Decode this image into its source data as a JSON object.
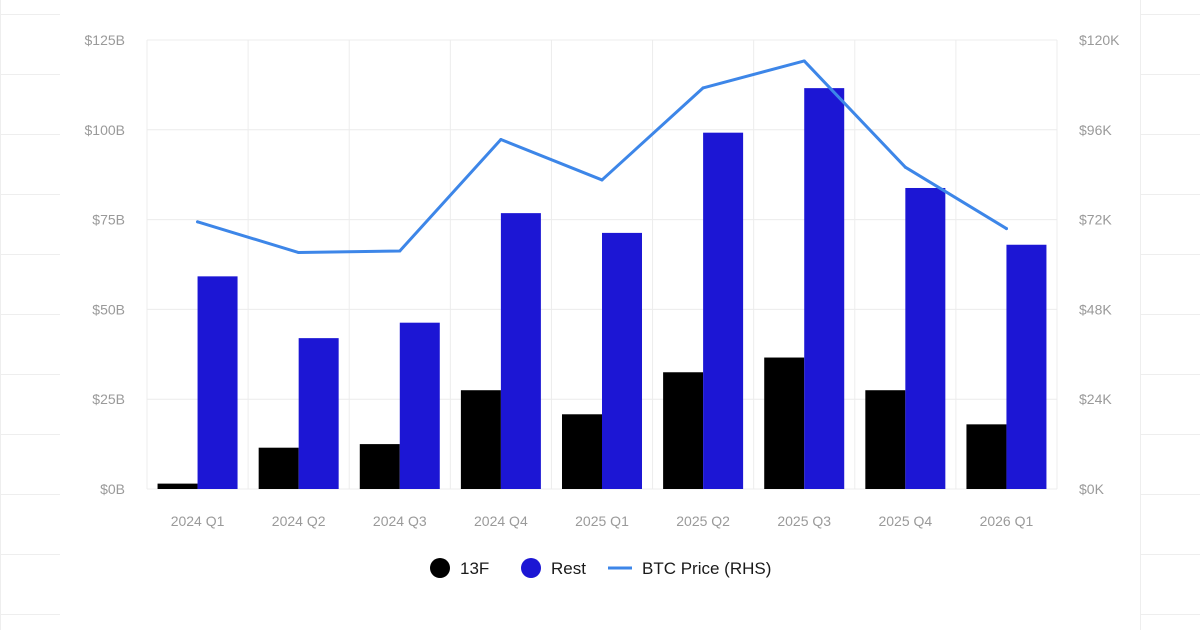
{
  "chart_data": {
    "type": "bar",
    "categories": [
      "2024 Q1",
      "2024 Q2",
      "2024 Q3",
      "2024 Q4",
      "2025 Q1",
      "2025 Q2",
      "2025 Q3",
      "2025 Q4",
      "2026 Q1"
    ],
    "series": [
      {
        "name": "13F",
        "type": "bar",
        "axis": "left",
        "color": "#000000",
        "values": [
          1.5,
          11.5,
          12.5,
          27.5,
          20.8,
          32.5,
          36.6,
          27.5,
          18
        ]
      },
      {
        "name": "Rest",
        "type": "bar",
        "axis": "left",
        "color": "#1c16d4",
        "values": [
          59.2,
          42.0,
          46.3,
          76.8,
          71.3,
          99.2,
          111.6,
          83.8,
          68.0
        ]
      },
      {
        "name": "BTC Price (RHS)",
        "type": "line",
        "axis": "right",
        "color": "#3d86e8",
        "values": [
          71400,
          63200,
          63600,
          93400,
          82600,
          107200,
          114400,
          86000,
          69600
        ]
      }
    ],
    "y_left": {
      "lim": [
        0,
        125
      ],
      "ticks": [
        0,
        25,
        50,
        75,
        100,
        125
      ],
      "tick_labels": [
        "$0B",
        "$25B",
        "$50B",
        "$75B",
        "$100B",
        "$125B"
      ]
    },
    "y_right": {
      "lim": [
        0,
        120000
      ],
      "ticks": [
        0,
        24000,
        48000,
        72000,
        96000,
        120000
      ],
      "tick_labels": [
        "$0K",
        "$24K",
        "$48K",
        "$72K",
        "$96K",
        "$120K"
      ]
    },
    "grid": true,
    "legend": "bottom-center",
    "legend_entries": [
      "13F",
      "Rest",
      "BTC Price (RHS)"
    ]
  }
}
